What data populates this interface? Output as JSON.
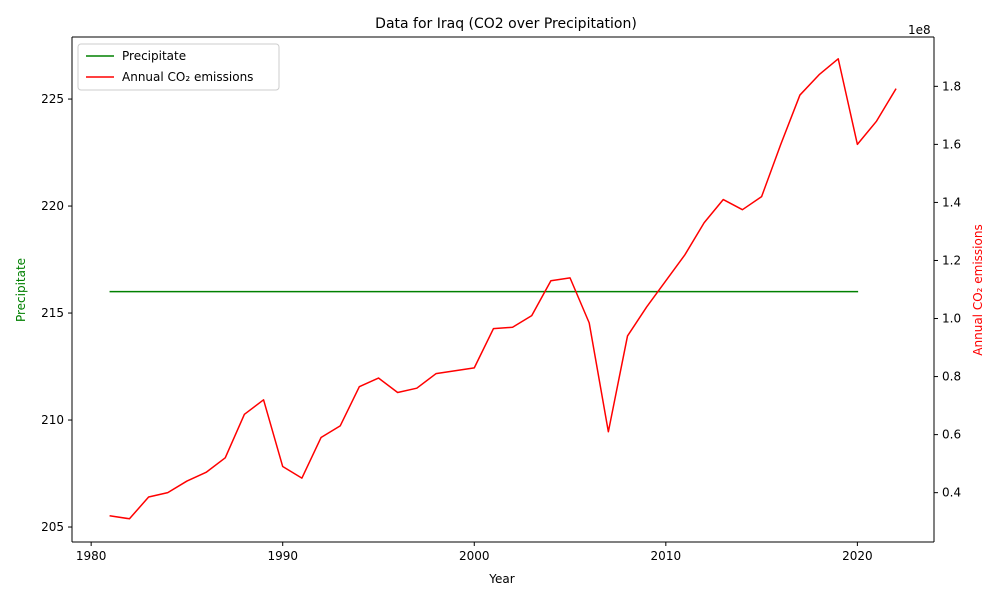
{
  "chart_data": {
    "type": "line",
    "title": "Data for Iraq (CO2 over Precipitation)",
    "xlabel": "Year",
    "ylabel_left": "Precipitate",
    "ylabel_right": "Annual CO₂ emissions",
    "right_axis_multiplier": "1e8",
    "xlim": [
      1979,
      2024
    ],
    "ylim_left": [
      204.3,
      227.9
    ],
    "ylim_right": [
      23000000,
      197000000
    ],
    "x_ticks": [
      1980,
      1990,
      2000,
      2010,
      2020
    ],
    "y_ticks_left": [
      205,
      210,
      215,
      220,
      225
    ],
    "y_ticks_right": [
      0.4,
      0.6,
      0.8,
      1.0,
      1.2,
      1.4,
      1.6,
      1.8
    ],
    "legend_position": "upper-left",
    "grid": false,
    "series": [
      {
        "name": "Precipitate",
        "axis": "left",
        "color": "#008000",
        "x": [
          1981,
          1982,
          1983,
          1984,
          1985,
          1986,
          1987,
          1988,
          1989,
          1990,
          1991,
          1992,
          1993,
          1994,
          1995,
          1996,
          1997,
          1998,
          1999,
          2000,
          2001,
          2002,
          2003,
          2004,
          2005,
          2006,
          2007,
          2008,
          2009,
          2010,
          2011,
          2012,
          2013,
          2014,
          2015,
          2016,
          2017,
          2018,
          2019,
          2020
        ],
        "values": [
          216,
          216,
          216,
          216,
          216,
          216,
          216,
          216,
          216,
          216,
          216,
          216,
          216,
          216,
          216,
          216,
          216,
          216,
          216,
          216,
          216,
          216,
          216,
          216,
          216,
          216,
          216,
          216,
          216,
          216,
          216,
          216,
          216,
          216,
          216,
          216,
          216,
          216,
          216,
          216
        ]
      },
      {
        "name": "Annual CO₂ emissions",
        "axis": "right",
        "color": "#ff0000",
        "x": [
          1981,
          1982,
          1983,
          1984,
          1985,
          1986,
          1987,
          1988,
          1989,
          1990,
          1991,
          1992,
          1993,
          1994,
          1995,
          1996,
          1997,
          1998,
          1999,
          2000,
          2001,
          2002,
          2003,
          2004,
          2005,
          2006,
          2007,
          2008,
          2009,
          2010,
          2011,
          2012,
          2013,
          2014,
          2015,
          2016,
          2017,
          2018,
          2019,
          2020,
          2021,
          2022
        ],
        "values": [
          32000000,
          31000000,
          38500000,
          40000000,
          44000000,
          47000000,
          52000000,
          67000000,
          72000000,
          49000000,
          45000000,
          59000000,
          63000000,
          76500000,
          79500000,
          74500000,
          76000000,
          81000000,
          82000000,
          83000000,
          96500000,
          97000000,
          101000000,
          113000000,
          114000000,
          98500000,
          61000000,
          94000000,
          104000000,
          113000000,
          122000000,
          133000000,
          141000000,
          137500000,
          142000000,
          160000000,
          177000000,
          184000000,
          189500000,
          160000000,
          168000000,
          179000000
        ]
      }
    ]
  }
}
